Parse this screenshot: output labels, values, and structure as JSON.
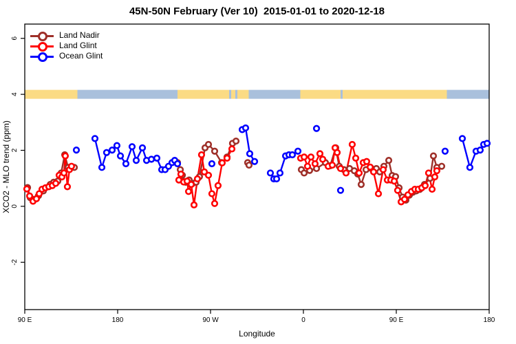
{
  "title": "45N-50N February (Ver 10)  2015-01-01 to 2020-12-18",
  "legend": {
    "items": [
      {
        "label": "Land Nadir",
        "color": "#9E2F28"
      },
      {
        "label": "Land Glint",
        "color": "#FF0000"
      },
      {
        "label": "Ocean Glint",
        "color": "#0000FF"
      }
    ]
  },
  "chart_data": {
    "type": "line",
    "title": "45N-50N February (Ver 10)  2015-01-01 to 2020-12-18",
    "xlabel": "Longitude",
    "ylabel": "XCO2 - MLO trend (ppm)",
    "x_axis": {
      "note": "longitude unwrapped in degrees east of Greenwich starting at 90E, wrapping past 180 and 360",
      "range": [
        90,
        540
      ],
      "ticks": [
        {
          "v": 90,
          "label": "90 E"
        },
        {
          "v": 180,
          "label": "180"
        },
        {
          "v": 270,
          "label": "90 W"
        },
        {
          "v": 360,
          "label": "0"
        },
        {
          "v": 450,
          "label": "90 E"
        },
        {
          "v": 540,
          "label": "180"
        }
      ]
    },
    "y_axis": {
      "range": [
        -3.69,
        6.51
      ],
      "ticks": [
        -2,
        0,
        2,
        4,
        6
      ],
      "grid": false
    },
    "map_strip": {
      "y_value": 4,
      "land_color": "#FBDB84",
      "ocean_color": "#A9C0DC",
      "segments": [
        [
          "land",
          90,
          141
        ],
        [
          "ocean",
          141,
          238
        ],
        [
          "land",
          238,
          288
        ],
        [
          "ocean",
          288,
          290
        ],
        [
          "land",
          290,
          294
        ],
        [
          "ocean",
          294,
          296
        ],
        [
          "land",
          296,
          307
        ],
        [
          "ocean",
          307,
          357
        ],
        [
          "land",
          357,
          396
        ],
        [
          "ocean",
          396,
          398
        ],
        [
          "land",
          398,
          499
        ],
        [
          "ocean",
          499,
          540
        ]
      ]
    },
    "series": [
      {
        "name": "Land Nadir",
        "color": "#9E2F28",
        "segments": [
          [
            [
              92.7,
              0.67
            ],
            [
              95.3,
              0.31
            ],
            [
              103.3,
              0.38
            ],
            [
              108,
              0.55
            ],
            [
              114.7,
              0.78
            ],
            [
              118,
              0.86
            ],
            [
              122,
              0.9
            ],
            [
              125.3,
              1.19
            ],
            [
              128.7,
              1.84
            ],
            [
              132,
              1.39
            ],
            [
              138,
              1.39
            ]
          ],
          [
            [
              238,
              1.56
            ],
            [
              240.7,
              1.31
            ],
            [
              242.7,
              1.11
            ],
            [
              246,
              0.86
            ],
            [
              249.3,
              0.94
            ],
            [
              252.7,
              0.82
            ],
            [
              256,
              0.86
            ],
            [
              259.3,
              1.06
            ],
            [
              264.7,
              2.09
            ],
            [
              268,
              2.21
            ],
            [
              274,
              1.97
            ],
            [
              280.7,
              1.56
            ],
            [
              286,
              1.76
            ],
            [
              291.3,
              2.25
            ],
            [
              294.7,
              2.33
            ]
          ],
          [
            [
              306,
              1.56
            ],
            [
              307.3,
              1.47
            ]
          ],
          [
            [
              358,
              1.31
            ],
            [
              360.7,
              1.19
            ],
            [
              366,
              1.28
            ],
            [
              372.7,
              1.35
            ],
            [
              381.3,
              1.56
            ],
            [
              386,
              1.45
            ],
            [
              391.3,
              2.09
            ],
            [
              394.7,
              1.43
            ],
            [
              399.3,
              1.31
            ],
            [
              404.7,
              1.35
            ],
            [
              409.3,
              1.27
            ],
            [
              412.7,
              1.15
            ],
            [
              416,
              0.78
            ],
            [
              420.7,
              1.31
            ],
            [
              426,
              1.35
            ],
            [
              430.7,
              1.35
            ],
            [
              434,
              1.23
            ],
            [
              438,
              1.43
            ],
            [
              442.7,
              1.64
            ],
            [
              446,
              1.1
            ],
            [
              449.3,
              1.06
            ],
            [
              452.7,
              0.66
            ],
            [
              456,
              0.33
            ],
            [
              459.3,
              0.22
            ],
            [
              462.7,
              0.4
            ],
            [
              466,
              0.5
            ],
            [
              469.3,
              0.55
            ],
            [
              472.7,
              0.6
            ],
            [
              477.3,
              0.78
            ],
            [
              482.7,
              1.0
            ],
            [
              486,
              1.8
            ],
            [
              489.3,
              1.39
            ],
            [
              494,
              1.43
            ]
          ]
        ]
      },
      {
        "name": "Land Glint",
        "color": "#FF0000",
        "segments": [
          [
            [
              92,
              0.62
            ],
            [
              94.7,
              0.37
            ],
            [
              98,
              0.18
            ],
            [
              101.3,
              0.27
            ],
            [
              104,
              0.45
            ],
            [
              106.7,
              0.61
            ],
            [
              110,
              0.66
            ],
            [
              113.3,
              0.7
            ],
            [
              116.7,
              0.74
            ],
            [
              120,
              0.82
            ],
            [
              123.3,
              1.11
            ],
            [
              126,
              1.05
            ],
            [
              128,
              1.19
            ],
            [
              129.3,
              1.8
            ],
            [
              131.3,
              0.7
            ],
            [
              133.3,
              1.31
            ],
            [
              135.3,
              1.43
            ]
          ],
          [
            [
              239.3,
              0.94
            ],
            [
              241.3,
              1.15
            ],
            [
              244,
              0.87
            ],
            [
              247.3,
              0.9
            ],
            [
              248.7,
              0.53
            ],
            [
              251.3,
              0.78
            ],
            [
              254,
              0.05
            ],
            [
              257.3,
              0.98
            ],
            [
              261.3,
              1.84
            ],
            [
              264,
              1.23
            ],
            [
              268,
              1.11
            ],
            [
              271.3,
              0.45
            ],
            [
              274,
              0.1
            ],
            [
              277.3,
              0.74
            ],
            [
              281.3,
              1.55
            ],
            [
              286,
              1.72
            ],
            [
              290.7,
              2.05
            ]
          ],
          [
            [
              357.3,
              1.72
            ],
            [
              360.7,
              1.76
            ],
            [
              364,
              1.43
            ],
            [
              367.3,
              1.76
            ],
            [
              371.3,
              1.52
            ],
            [
              376,
              1.88
            ],
            [
              378.7,
              1.68
            ],
            [
              384,
              1.43
            ],
            [
              388,
              1.47
            ],
            [
              390.7,
              2.09
            ],
            [
              392.7,
              1.92
            ],
            [
              396,
              1.35
            ],
            [
              401.3,
              1.19
            ],
            [
              407.3,
              2.21
            ],
            [
              410.7,
              1.72
            ],
            [
              414,
              1.19
            ],
            [
              418,
              1.56
            ],
            [
              421.3,
              1.6
            ],
            [
              424.7,
              1.4
            ],
            [
              428,
              1.23
            ],
            [
              432.7,
              0.45
            ],
            [
              437.3,
              1.31
            ],
            [
              441.3,
              0.94
            ],
            [
              444.7,
              0.94
            ],
            [
              448,
              0.9
            ],
            [
              451.3,
              0.57
            ],
            [
              454.7,
              0.16
            ],
            [
              458,
              0.25
            ],
            [
              461.3,
              0.41
            ],
            [
              464.7,
              0.53
            ],
            [
              468,
              0.61
            ],
            [
              471.3,
              0.61
            ],
            [
              474.7,
              0.66
            ],
            [
              478,
              0.74
            ],
            [
              481.3,
              1.19
            ],
            [
              484.7,
              0.61
            ],
            [
              487.3,
              1.05
            ],
            [
              489.3,
              1.27
            ]
          ]
        ]
      },
      {
        "name": "Ocean Glint",
        "color": "#0000FF",
        "segments": [
          [
            [
              140,
              2.01
            ]
          ],
          [
            [
              158,
              2.42
            ],
            [
              164.7,
              1.39
            ],
            [
              169.3,
              1.92
            ],
            [
              174.7,
              2.01
            ],
            [
              179.3,
              2.17
            ],
            [
              182.7,
              1.8
            ],
            [
              188,
              1.52
            ],
            [
              194,
              2.13
            ],
            [
              198,
              1.64
            ],
            [
              204,
              2.09
            ],
            [
              208,
              1.64
            ],
            [
              212.7,
              1.68
            ],
            [
              218,
              1.72
            ],
            [
              222.7,
              1.31
            ],
            [
              226,
              1.31
            ],
            [
              229.3,
              1.43
            ],
            [
              232.7,
              1.56
            ],
            [
              235.3,
              1.64
            ],
            [
              238,
              1.52
            ]
          ],
          [
            [
              271.3,
              1.52
            ]
          ],
          [
            [
              300.7,
              2.74
            ],
            [
              304,
              2.8
            ],
            [
              308,
              1.88
            ],
            [
              312.7,
              1.6
            ]
          ],
          [
            [
              328,
              1.19
            ],
            [
              331.3,
              0.98
            ],
            [
              334,
              0.98
            ],
            [
              337.3,
              1.19
            ],
            [
              342.7,
              1.8
            ],
            [
              346,
              1.84
            ],
            [
              349.3,
              1.84
            ],
            [
              354.7,
              1.97
            ]
          ],
          [
            [
              372.7,
              2.78
            ]
          ],
          [
            [
              396,
              0.57
            ]
          ],
          [
            [
              497.3,
              1.97
            ]
          ],
          [
            [
              514,
              2.42
            ],
            [
              521.3,
              1.39
            ],
            [
              527.3,
              1.97
            ],
            [
              531.3,
              2.01
            ],
            [
              534.7,
              2.21
            ],
            [
              538,
              2.25
            ]
          ]
        ]
      }
    ]
  }
}
